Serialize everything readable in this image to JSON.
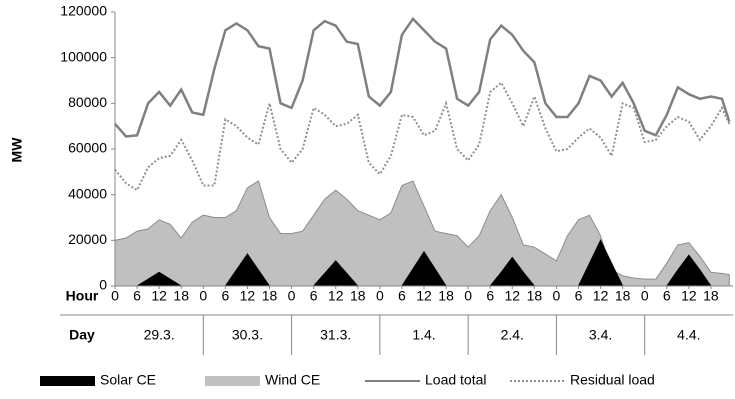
{
  "chart_data": {
    "type": "area-line",
    "y_label": "MW",
    "x_row_label": "Hour",
    "group_row_label": "Day",
    "groups": [
      "29.3.",
      "30.3.",
      "31.3.",
      "1.4.",
      "2.4.",
      "3.4.",
      "4.4."
    ],
    "group_size": 24,
    "xlim": [
      0,
      168
    ],
    "xticks": [
      0,
      6,
      12,
      18,
      {
        "value": 24,
        "label": "0"
      },
      {
        "value": 30,
        "label": "6"
      },
      {
        "value": 36,
        "label": "12"
      },
      {
        "value": 42,
        "label": "18"
      },
      {
        "value": 48,
        "label": "0"
      },
      {
        "value": 54,
        "label": "6"
      },
      {
        "value": 60,
        "label": "12"
      },
      {
        "value": 66,
        "label": "18"
      },
      {
        "value": 72,
        "label": "0"
      },
      {
        "value": 78,
        "label": "6"
      },
      {
        "value": 84,
        "label": "12"
      },
      {
        "value": 90,
        "label": "18"
      },
      {
        "value": 96,
        "label": "0"
      },
      {
        "value": 102,
        "label": "6"
      },
      {
        "value": 108,
        "label": "12"
      },
      {
        "value": 114,
        "label": "18"
      },
      {
        "value": 120,
        "label": "0"
      },
      {
        "value": 126,
        "label": "6"
      },
      {
        "value": 132,
        "label": "12"
      },
      {
        "value": 138,
        "label": "18"
      },
      {
        "value": 144,
        "label": "0"
      },
      {
        "value": 150,
        "label": "6"
      },
      {
        "value": 156,
        "label": "12"
      },
      {
        "value": 162,
        "label": "18"
      }
    ],
    "ylim": [
      0,
      120000
    ],
    "yticks": [
      0,
      20000,
      40000,
      60000,
      80000,
      100000,
      120000
    ],
    "grid": false,
    "legend": "bottom",
    "x": [
      0,
      3,
      6,
      9,
      12,
      15,
      18,
      21,
      24,
      27,
      30,
      33,
      36,
      39,
      42,
      45,
      48,
      51,
      54,
      57,
      60,
      63,
      66,
      69,
      72,
      75,
      78,
      81,
      84,
      87,
      90,
      93,
      96,
      99,
      102,
      105,
      108,
      111,
      114,
      117,
      120,
      123,
      126,
      129,
      132,
      135,
      138,
      141,
      144,
      147,
      150,
      153,
      156,
      159,
      162,
      165,
      167
    ],
    "series": [
      {
        "name": "Solar CE",
        "color": "#000000",
        "style": "area",
        "values": [
          0,
          0,
          0,
          3000,
          6000,
          3000,
          0,
          0,
          0,
          0,
          0,
          7000,
          14000,
          7000,
          0,
          0,
          0,
          0,
          0,
          5500,
          11000,
          5500,
          0,
          0,
          0,
          0,
          0,
          7500,
          15000,
          7500,
          0,
          0,
          0,
          0,
          0,
          6000,
          12500,
          6000,
          0,
          0,
          0,
          0,
          0,
          10000,
          20000,
          10000,
          0,
          0,
          0,
          0,
          0,
          7000,
          13500,
          7000,
          0,
          0,
          0
        ]
      },
      {
        "name": "Wind CE",
        "color": "#c0c0c0",
        "style": "area",
        "values": [
          20000,
          21000,
          24000,
          25000,
          29000,
          27000,
          21000,
          28000,
          31000,
          30000,
          30000,
          33000,
          43000,
          46000,
          30000,
          23000,
          23000,
          24000,
          31000,
          38000,
          42000,
          38000,
          33000,
          31000,
          29000,
          32000,
          44000,
          46000,
          35000,
          24000,
          23000,
          22000,
          17000,
          22000,
          33000,
          40000,
          30000,
          18000,
          17000,
          14000,
          11000,
          22000,
          29000,
          31000,
          22000,
          7000,
          4500,
          3500,
          3000,
          3000,
          10000,
          18000,
          19000,
          13000,
          6000,
          5500,
          5000
        ]
      },
      {
        "name": "Load total",
        "color": "#808080",
        "style": "line",
        "values": [
          71000,
          65500,
          66000,
          80000,
          85000,
          79000,
          86000,
          76000,
          75000,
          95000,
          112000,
          115000,
          112000,
          105000,
          104000,
          80000,
          78000,
          90000,
          112000,
          116000,
          114000,
          107000,
          106000,
          83000,
          79000,
          85000,
          110000,
          117000,
          112000,
          107000,
          104000,
          82000,
          79000,
          85000,
          108000,
          114000,
          110000,
          103000,
          98000,
          80000,
          74000,
          74000,
          80000,
          92000,
          90000,
          83000,
          89000,
          80000,
          68000,
          66000,
          75000,
          87000,
          84000,
          82000,
          83000,
          82000,
          72000
        ]
      },
      {
        "name": "Residual load",
        "color": "#909090",
        "style": "dotted",
        "values": [
          51000,
          45000,
          42000,
          52000,
          56000,
          57000,
          64000,
          55000,
          44000,
          44000,
          73000,
          70000,
          65000,
          62000,
          80000,
          60000,
          54000,
          60000,
          78000,
          75000,
          70000,
          71000,
          75000,
          54000,
          49000,
          57000,
          75000,
          74000,
          66000,
          68000,
          80000,
          60000,
          55000,
          62000,
          85000,
          89000,
          80000,
          70000,
          83000,
          69000,
          59000,
          60000,
          65000,
          69000,
          65000,
          57000,
          80000,
          78000,
          63000,
          64000,
          70000,
          74000,
          72000,
          64000,
          70000,
          78000,
          71000
        ]
      }
    ]
  }
}
